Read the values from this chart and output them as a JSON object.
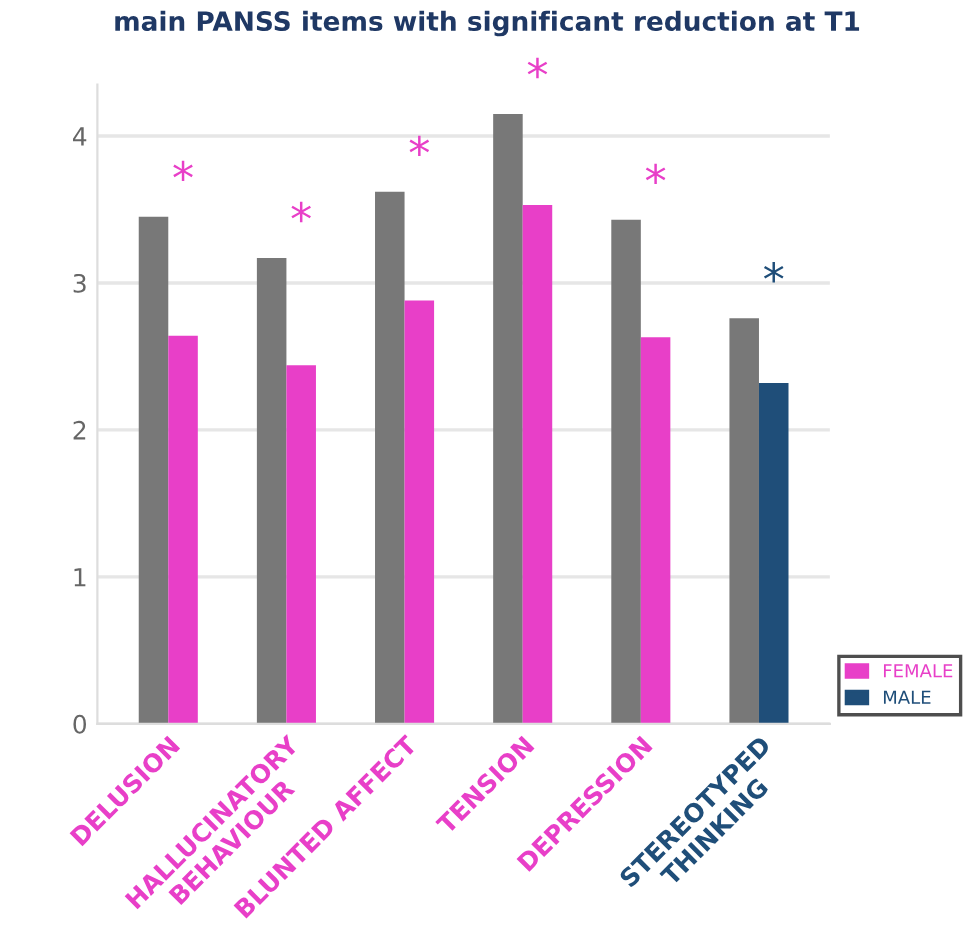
{
  "chart_data": {
    "type": "bar",
    "title": "main PANSS items with significant reduction at T1",
    "categories": [
      "DELUSION",
      "HALLUCINATORY\nBEHAVIOUR",
      "BLUNTED AFFECT",
      "TENSION",
      "DEPRESSION",
      "STEREOTYPED\nTHINKING"
    ],
    "series": [
      {
        "color": "#787878",
        "values": [
          3.45,
          3.17,
          3.62,
          4.15,
          3.43,
          2.76
        ]
      },
      {
        "name": "FEMALE",
        "color": "#e83fc8",
        "values": [
          2.64,
          2.44,
          2.88,
          3.53,
          2.63,
          null
        ]
      },
      {
        "name": "MALE",
        "color": "#1f4e79",
        "values": [
          null,
          null,
          null,
          null,
          null,
          2.32
        ]
      }
    ],
    "annotations": [
      "*",
      "*",
      "*",
      "*",
      "*",
      "*"
    ],
    "ylim": [
      0,
      4.35
    ],
    "yticks": [
      0,
      1,
      2,
      3,
      4
    ],
    "grid": "y",
    "legend": "bottom right"
  }
}
